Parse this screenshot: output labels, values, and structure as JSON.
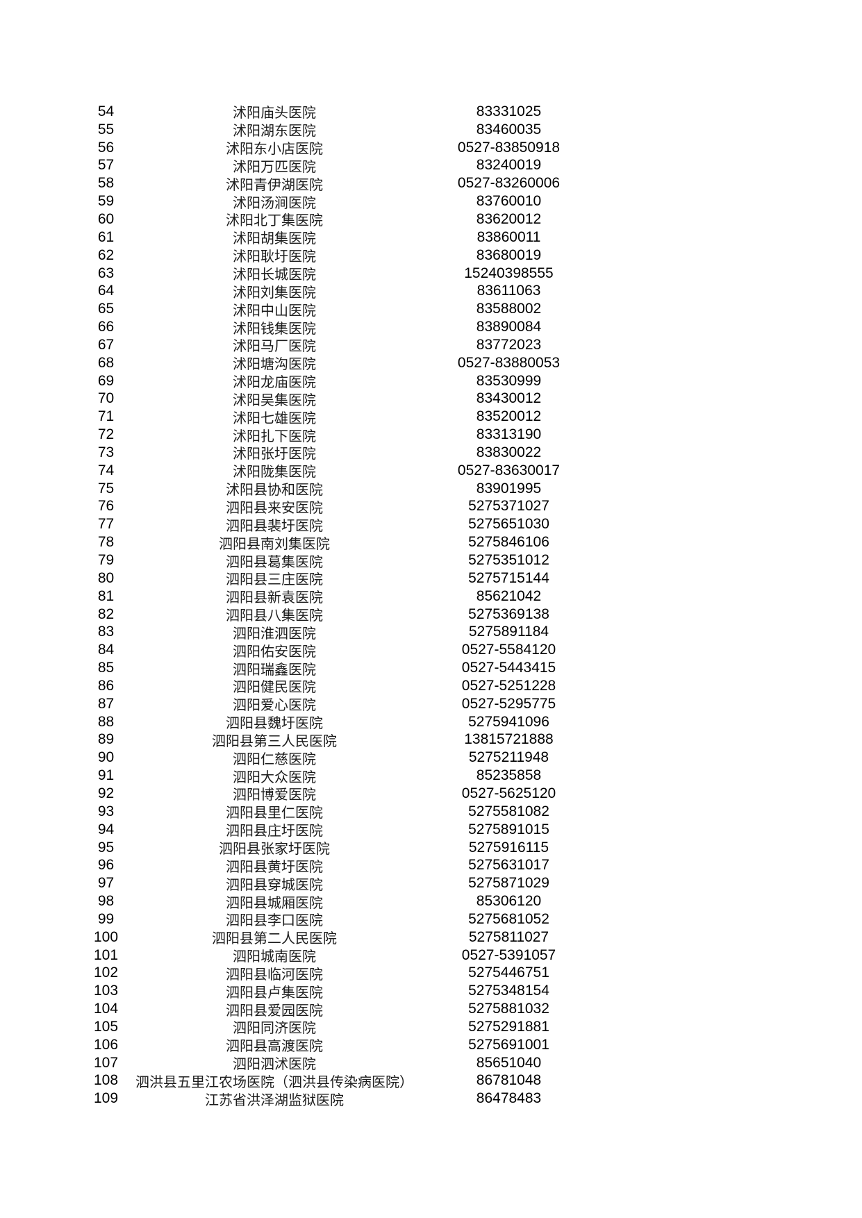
{
  "page": {
    "background_color": "#ffffff",
    "text_color": "#000000"
  },
  "table": {
    "rows": [
      {
        "no": "54",
        "name": "沭阳庙头医院",
        "phone": "83331025"
      },
      {
        "no": "55",
        "name": "沭阳湖东医院",
        "phone": "83460035"
      },
      {
        "no": "56",
        "name": "沭阳东小店医院",
        "phone": "0527-83850918"
      },
      {
        "no": "57",
        "name": "沭阳万匹医院",
        "phone": "83240019"
      },
      {
        "no": "58",
        "name": "沭阳青伊湖医院",
        "phone": "0527-83260006"
      },
      {
        "no": "59",
        "name": "沭阳汤涧医院",
        "phone": "83760010"
      },
      {
        "no": "60",
        "name": "沭阳北丁集医院",
        "phone": "83620012"
      },
      {
        "no": "61",
        "name": "沭阳胡集医院",
        "phone": "83860011"
      },
      {
        "no": "62",
        "name": "沭阳耿圩医院",
        "phone": "83680019"
      },
      {
        "no": "63",
        "name": "沭阳长城医院",
        "phone": "15240398555"
      },
      {
        "no": "64",
        "name": "沭阳刘集医院",
        "phone": "83611063"
      },
      {
        "no": "65",
        "name": "沭阳中山医院",
        "phone": "83588002"
      },
      {
        "no": "66",
        "name": "沭阳钱集医院",
        "phone": "83890084"
      },
      {
        "no": "67",
        "name": "沭阳马厂医院",
        "phone": "83772023"
      },
      {
        "no": "68",
        "name": "沭阳塘沟医院",
        "phone": "0527-83880053"
      },
      {
        "no": "69",
        "name": "沭阳龙庙医院",
        "phone": "83530999"
      },
      {
        "no": "70",
        "name": "沭阳吴集医院",
        "phone": "83430012"
      },
      {
        "no": "71",
        "name": "沭阳七雄医院",
        "phone": "83520012"
      },
      {
        "no": "72",
        "name": "沭阳扎下医院",
        "phone": "83313190"
      },
      {
        "no": "73",
        "name": "沭阳张圩医院",
        "phone": "83830022"
      },
      {
        "no": "74",
        "name": "沭阳陇集医院",
        "phone": "0527-83630017"
      },
      {
        "no": "75",
        "name": "沭阳县协和医院",
        "phone": "83901995"
      },
      {
        "no": "76",
        "name": "泗阳县来安医院",
        "phone": "5275371027"
      },
      {
        "no": "77",
        "name": "泗阳县裴圩医院",
        "phone": "5275651030"
      },
      {
        "no": "78",
        "name": "泗阳县南刘集医院",
        "phone": "5275846106"
      },
      {
        "no": "79",
        "name": "泗阳县葛集医院",
        "phone": "5275351012"
      },
      {
        "no": "80",
        "name": "泗阳县三庄医院",
        "phone": "5275715144"
      },
      {
        "no": "81",
        "name": "泗阳县新袁医院",
        "phone": "85621042"
      },
      {
        "no": "82",
        "name": "泗阳县八集医院",
        "phone": "5275369138"
      },
      {
        "no": "83",
        "name": "泗阳淮泗医院",
        "phone": "5275891184"
      },
      {
        "no": "84",
        "name": "泗阳佑安医院",
        "phone": "0527-5584120"
      },
      {
        "no": "85",
        "name": "泗阳瑞鑫医院",
        "phone": "0527-5443415"
      },
      {
        "no": "86",
        "name": "泗阳健民医院",
        "phone": "0527-5251228"
      },
      {
        "no": "87",
        "name": "泗阳爱心医院",
        "phone": "0527-5295775"
      },
      {
        "no": "88",
        "name": "泗阳县魏圩医院",
        "phone": "5275941096"
      },
      {
        "no": "89",
        "name": "泗阳县第三人民医院",
        "phone": "13815721888"
      },
      {
        "no": "90",
        "name": "泗阳仁慈医院",
        "phone": "5275211948"
      },
      {
        "no": "91",
        "name": "泗阳大众医院",
        "phone": "85235858"
      },
      {
        "no": "92",
        "name": "泗阳博爱医院",
        "phone": "0527-5625120"
      },
      {
        "no": "93",
        "name": "泗阳县里仁医院",
        "phone": "5275581082"
      },
      {
        "no": "94",
        "name": "泗阳县庄圩医院",
        "phone": "5275891015"
      },
      {
        "no": "95",
        "name": "泗阳县张家圩医院",
        "phone": "5275916115"
      },
      {
        "no": "96",
        "name": "泗阳县黄圩医院",
        "phone": "5275631017"
      },
      {
        "no": "97",
        "name": "泗阳县穿城医院",
        "phone": "5275871029"
      },
      {
        "no": "98",
        "name": "泗阳县城厢医院",
        "phone": "85306120"
      },
      {
        "no": "99",
        "name": "泗阳县李口医院",
        "phone": "5275681052"
      },
      {
        "no": "100",
        "name": "泗阳县第二人民医院",
        "phone": "5275811027"
      },
      {
        "no": "101",
        "name": "泗阳城南医院",
        "phone": "0527-5391057"
      },
      {
        "no": "102",
        "name": "泗阳县临河医院",
        "phone": "5275446751"
      },
      {
        "no": "103",
        "name": "泗阳县卢集医院",
        "phone": "5275348154"
      },
      {
        "no": "104",
        "name": "泗阳县爱园医院",
        "phone": "5275881032"
      },
      {
        "no": "105",
        "name": "泗阳同济医院",
        "phone": "5275291881"
      },
      {
        "no": "106",
        "name": "泗阳县高渡医院",
        "phone": "5275691001"
      },
      {
        "no": "107",
        "name": "泗阳泗沭医院",
        "phone": "85651040"
      },
      {
        "no": "108",
        "name": "泗洪县五里江农场医院（泗洪县传染病医院）",
        "phone": "86781048"
      },
      {
        "no": "109",
        "name": "江苏省洪泽湖监狱医院",
        "phone": "86478483"
      }
    ]
  }
}
